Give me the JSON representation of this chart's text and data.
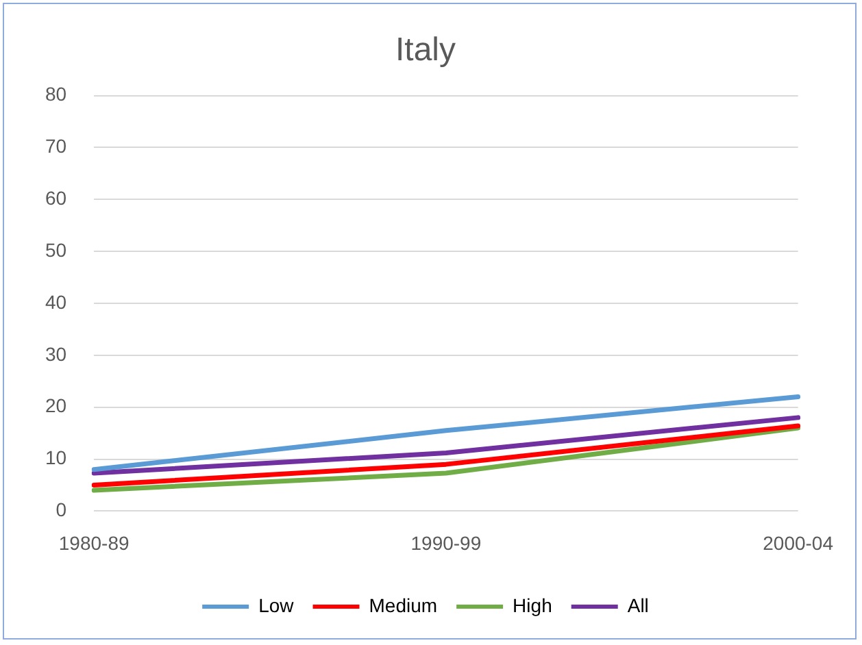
{
  "chart_data": {
    "type": "line",
    "title": "Italy",
    "categories": [
      "1980-89",
      "1990-99",
      "2000-04"
    ],
    "series": [
      {
        "name": "Low",
        "color": "#5b9bd5",
        "values": [
          8,
          15.5,
          22
        ]
      },
      {
        "name": "Medium",
        "color": "#ff0000",
        "values": [
          5,
          9,
          16.4
        ]
      },
      {
        "name": "High",
        "color": "#70ad47",
        "values": [
          4,
          7.3,
          16
        ]
      },
      {
        "name": "All",
        "color": "#7030a0",
        "values": [
          7.3,
          11.2,
          18
        ]
      }
    ],
    "ylim": [
      0,
      80
    ],
    "yticks": [
      0,
      10,
      20,
      30,
      40,
      50,
      60,
      70,
      80
    ],
    "grid": "y",
    "legend": "bottom",
    "marker": "none"
  }
}
